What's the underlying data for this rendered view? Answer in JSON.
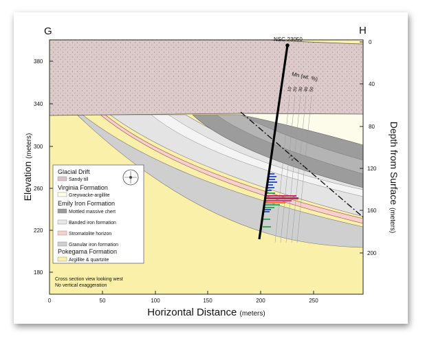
{
  "corners": {
    "left": "G",
    "right": "H"
  },
  "drill_hole": "NSC-23050",
  "mn_scale": {
    "label": "Mn (wt. %)",
    "ticks": [
      "10",
      "20",
      "30",
      "40",
      "50"
    ]
  },
  "fault_label": "↑↓",
  "axes": {
    "x_label": "Horizontal Distance",
    "x_unit": "(meters)",
    "x_ticks": [
      "0",
      "50",
      "100",
      "150",
      "200",
      "250"
    ],
    "y_left_label": "Elevation",
    "y_left_unit": "(meters)",
    "y_left_ticks": [
      "380",
      "340",
      "300",
      "260",
      "220",
      "180"
    ],
    "y_right_label": "Depth from Surface",
    "y_right_unit": "(meters)",
    "y_right_ticks": [
      "0",
      "40",
      "80",
      "120",
      "160",
      "200"
    ]
  },
  "legend": {
    "groups": [
      {
        "title": "Glacial Drift",
        "items": [
          {
            "label": "Sandy till",
            "color": "#d8c4c4"
          }
        ]
      },
      {
        "title": "Virginia Formation",
        "items": [
          {
            "label": "Greywacke-argillite",
            "color": "#fdfbe9"
          }
        ]
      },
      {
        "title": "Emily Iron Formation",
        "items": [
          {
            "label": "Mottled massive chert",
            "color": "#9c9c9c"
          },
          {
            "label": "Banded iron formation",
            "color": "#e8e8e8"
          },
          {
            "label": "Stromatolite horizon",
            "color": "#f5d0cc"
          },
          {
            "label": "Granular iron formation",
            "color": "#cfcfcf"
          }
        ]
      },
      {
        "title": "Pokegama Formation",
        "items": [
          {
            "label": "Argillite & quartzite",
            "color": "#fbf0a9"
          }
        ]
      }
    ]
  },
  "notes": [
    "Cross section view looking west",
    "No vertical exaggeration"
  ]
}
